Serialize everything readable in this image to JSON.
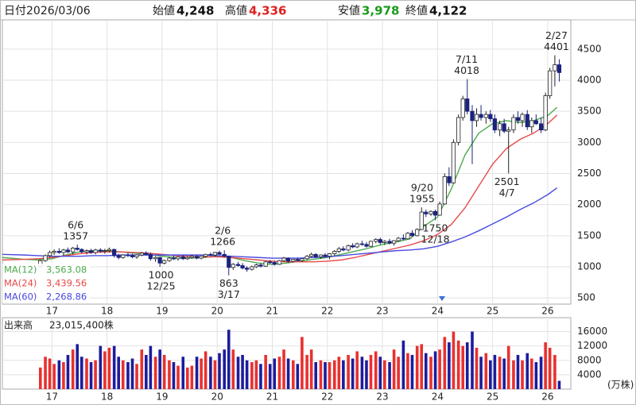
{
  "header": {
    "date_label": "日付",
    "date": "2026/03/06",
    "fields": [
      {
        "label": "始値",
        "value": "4,248",
        "color": "#111111"
      },
      {
        "label": "高値",
        "value": "4,336",
        "color": "#e02020"
      },
      {
        "label": "安値",
        "value": "3,978",
        "color": "#1a9a1a"
      },
      {
        "label": "終値",
        "value": "4,122",
        "color": "#111111"
      }
    ]
  },
  "chart_data": {
    "type": "candlestick",
    "xlim": [
      16.1,
      26.42
    ],
    "xticks": [
      17,
      18,
      19,
      20,
      21,
      22,
      23,
      24,
      25,
      26
    ],
    "ylim": [
      400,
      4970
    ],
    "yticks": [
      500,
      1000,
      1500,
      2000,
      2500,
      3000,
      3500,
      4000,
      4500
    ],
    "grid": true,
    "up_color": "#ffffff",
    "up_border": "#222222",
    "down_color": "#1a237e",
    "x": [
      16.79,
      16.88,
      16.96,
      17.04,
      17.13,
      17.21,
      17.29,
      17.38,
      17.46,
      17.54,
      17.63,
      17.71,
      17.79,
      17.88,
      17.96,
      18.04,
      18.13,
      18.21,
      18.29,
      18.38,
      18.46,
      18.54,
      18.63,
      18.71,
      18.79,
      18.88,
      18.96,
      19.04,
      19.13,
      19.21,
      19.29,
      19.38,
      19.46,
      19.54,
      19.63,
      19.71,
      19.79,
      19.88,
      19.96,
      20.04,
      20.13,
      20.21,
      20.29,
      20.38,
      20.46,
      20.54,
      20.63,
      20.71,
      20.79,
      20.88,
      20.96,
      21.04,
      21.13,
      21.21,
      21.29,
      21.38,
      21.46,
      21.54,
      21.63,
      21.71,
      21.79,
      21.88,
      21.96,
      22.04,
      22.13,
      22.21,
      22.29,
      22.38,
      22.46,
      22.54,
      22.63,
      22.71,
      22.79,
      22.88,
      22.96,
      23.04,
      23.13,
      23.21,
      23.29,
      23.38,
      23.46,
      23.54,
      23.63,
      23.71,
      23.79,
      23.88,
      23.96,
      24.04,
      24.13,
      24.21,
      24.29,
      24.38,
      24.46,
      24.54,
      24.63,
      24.71,
      24.79,
      24.88,
      24.96,
      25.04,
      25.13,
      25.21,
      25.29,
      25.38,
      25.46,
      25.54,
      25.63,
      25.71,
      25.79,
      25.88,
      25.96,
      26.04,
      26.13,
      26.21
    ],
    "open": [
      1000,
      1100,
      1180,
      1230,
      1250,
      1230,
      1270,
      1240,
      1300,
      1280,
      1240,
      1260,
      1230,
      1270,
      1250,
      1260,
      1280,
      1180,
      1150,
      1190,
      1180,
      1160,
      1190,
      1220,
      1200,
      1130,
      1150,
      1060,
      1100,
      1140,
      1130,
      1160,
      1130,
      1150,
      1170,
      1140,
      1170,
      1200,
      1190,
      1230,
      1200,
      1170,
      990,
      1040,
      1020,
      980,
      960,
      1000,
      1030,
      1010,
      1080,
      1070,
      1040,
      1100,
      1140,
      1090,
      1120,
      1100,
      1130,
      1170,
      1200,
      1160,
      1190,
      1170,
      1210,
      1250,
      1290,
      1270,
      1340,
      1320,
      1370,
      1360,
      1330,
      1410,
      1440,
      1390,
      1410,
      1380,
      1420,
      1460,
      1450,
      1540,
      1500,
      1600,
      1880,
      1850,
      1890,
      1830,
      2010,
      2450,
      2350,
      3000,
      3400,
      3700,
      3500,
      3350,
      3450,
      3400,
      3450,
      3380,
      3200,
      3300,
      3180,
      3200,
      3400,
      3350,
      3450,
      3250,
      3350,
      3300,
      3200,
      3750,
      4150,
      4248
    ],
    "high": [
      1120,
      1200,
      1260,
      1280,
      1300,
      1290,
      1310,
      1320,
      1357,
      1300,
      1280,
      1290,
      1290,
      1300,
      1290,
      1310,
      1290,
      1210,
      1200,
      1230,
      1210,
      1200,
      1240,
      1250,
      1230,
      1170,
      1160,
      1120,
      1160,
      1180,
      1170,
      1190,
      1170,
      1190,
      1190,
      1180,
      1210,
      1230,
      1240,
      1260,
      1266,
      1180,
      1060,
      1080,
      1060,
      1010,
      1020,
      1050,
      1060,
      1090,
      1110,
      1100,
      1110,
      1160,
      1150,
      1130,
      1150,
      1140,
      1190,
      1230,
      1220,
      1200,
      1220,
      1220,
      1270,
      1320,
      1330,
      1360,
      1380,
      1390,
      1420,
      1400,
      1420,
      1460,
      1470,
      1430,
      1450,
      1430,
      1480,
      1520,
      1560,
      1590,
      1620,
      1955,
      1920,
      1910,
      1920,
      2050,
      2500,
      2600,
      3050,
      3450,
      3750,
      4018,
      3600,
      3550,
      3600,
      3500,
      3520,
      3450,
      3350,
      3380,
      3250,
      3450,
      3500,
      3480,
      3520,
      3400,
      3450,
      3400,
      3800,
      4200,
      4401,
      4336
    ],
    "low": [
      980,
      1080,
      1150,
      1190,
      1210,
      1180,
      1220,
      1200,
      1260,
      1220,
      1200,
      1210,
      1200,
      1230,
      1210,
      1230,
      1150,
      1120,
      1130,
      1160,
      1140,
      1130,
      1170,
      1180,
      1100,
      1080,
      1000,
      1040,
      1080,
      1110,
      1100,
      1110,
      1110,
      1130,
      1120,
      1120,
      1150,
      1170,
      1170,
      1190,
      1150,
      863,
      950,
      1000,
      960,
      920,
      940,
      980,
      990,
      1000,
      1050,
      1020,
      1030,
      1080,
      1060,
      1070,
      1090,
      1080,
      1110,
      1150,
      1140,
      1130,
      1150,
      1120,
      1180,
      1220,
      1250,
      1250,
      1300,
      1300,
      1340,
      1310,
      1320,
      1380,
      1360,
      1350,
      1360,
      1340,
      1400,
      1430,
      1440,
      1480,
      1490,
      1590,
      1800,
      1820,
      1750,
      1820,
      2000,
      2300,
      2340,
      2950,
      3350,
      3450,
      2650,
      3250,
      3350,
      3300,
      3330,
      3150,
      3100,
      3150,
      2501,
      3150,
      3300,
      3250,
      3200,
      3150,
      3280,
      3150,
      3180,
      3700,
      3900,
      3978
    ],
    "close": [
      1100,
      1180,
      1230,
      1250,
      1230,
      1270,
      1240,
      1300,
      1280,
      1240,
      1260,
      1230,
      1270,
      1250,
      1260,
      1280,
      1180,
      1150,
      1190,
      1180,
      1160,
      1190,
      1220,
      1200,
      1130,
      1150,
      1060,
      1100,
      1140,
      1130,
      1160,
      1130,
      1150,
      1170,
      1140,
      1170,
      1200,
      1190,
      1230,
      1200,
      1170,
      990,
      1040,
      1020,
      980,
      960,
      1000,
      1030,
      1010,
      1080,
      1070,
      1040,
      1100,
      1140,
      1090,
      1120,
      1100,
      1130,
      1170,
      1200,
      1160,
      1190,
      1170,
      1210,
      1250,
      1290,
      1270,
      1340,
      1320,
      1370,
      1360,
      1330,
      1410,
      1440,
      1390,
      1410,
      1380,
      1420,
      1460,
      1450,
      1540,
      1500,
      1600,
      1880,
      1850,
      1890,
      1830,
      2010,
      2450,
      2350,
      3000,
      3400,
      3700,
      3500,
      3350,
      3450,
      3400,
      3450,
      3380,
      3200,
      3300,
      3180,
      3200,
      3400,
      3350,
      3450,
      3250,
      3350,
      3300,
      3200,
      3750,
      4150,
      4248,
      4122
    ],
    "volume": [
      6000,
      9000,
      8500,
      7000,
      8000,
      7500,
      9500,
      11000,
      12500,
      9000,
      8500,
      7500,
      8000,
      12000,
      10500,
      11500,
      12000,
      9000,
      8000,
      7500,
      8500,
      7000,
      11000,
      9500,
      12000,
      9000,
      11000,
      9500,
      8000,
      7500,
      6500,
      9000,
      6000,
      6500,
      9000,
      8500,
      10500,
      9000,
      8000,
      10000,
      11000,
      16500,
      11000,
      9000,
      9500,
      8000,
      7500,
      8000,
      7000,
      9500,
      7000,
      8500,
      9000,
      11000,
      8500,
      8000,
      7000,
      14500,
      9500,
      11000,
      7500,
      8000,
      7500,
      7500,
      8000,
      9000,
      8000,
      9500,
      8500,
      10500,
      9000,
      8000,
      9500,
      10500,
      9000,
      8000,
      7500,
      11000,
      9000,
      13500,
      10000,
      9500,
      12000,
      12500,
      10000,
      9000,
      10500,
      11000,
      14500,
      13000,
      16000,
      13500,
      12000,
      13000,
      16000,
      11500,
      9000,
      10000,
      8000,
      9500,
      9000,
      8500,
      12000,
      8000,
      9500,
      8000,
      10000,
      8500,
      7500,
      9000,
      13000,
      11500,
      9500,
      2301.54
    ],
    "volume_title": "出来高",
    "volume_latest": "23,015,400株",
    "volume_unit": "(万株)",
    "volume_ylim": [
      0,
      19200
    ],
    "volume_yticks": [
      4000,
      8000,
      12000,
      16000
    ],
    "volume_up_color": "#e8312f",
    "volume_down_color": "#1c1c9c",
    "ma_x": [
      16.1,
      16.5,
      16.75,
      17.0,
      17.25,
      17.5,
      17.75,
      18.0,
      18.25,
      18.5,
      18.75,
      19.0,
      19.25,
      19.5,
      19.75,
      20.0,
      20.25,
      20.5,
      20.75,
      21.0,
      21.25,
      21.5,
      21.75,
      22.0,
      22.25,
      22.5,
      22.75,
      23.0,
      23.25,
      23.5,
      23.75,
      24.0,
      24.25,
      24.5,
      24.75,
      25.0,
      25.25,
      25.5,
      25.75,
      26.0,
      26.17
    ],
    "moving_averages": [
      {
        "name": "MA(12)",
        "latest_label": "3,563.08",
        "color": "#4caa4c",
        "values": [
          1150,
          1120,
          1110,
          1130,
          1190,
          1240,
          1260,
          1260,
          1240,
          1220,
          1200,
          1170,
          1150,
          1140,
          1150,
          1170,
          1150,
          1100,
          1060,
          1040,
          1060,
          1090,
          1120,
          1150,
          1200,
          1250,
          1300,
          1360,
          1400,
          1450,
          1650,
          1800,
          2250,
          2800,
          3150,
          3300,
          3350,
          3320,
          3350,
          3430,
          3563.08
        ]
      },
      {
        "name": "MA(24)",
        "latest_label": "3,439.56",
        "color": "#e84a4a",
        "values": [
          1110,
          1120,
          1130,
          1150,
          1180,
          1210,
          1230,
          1240,
          1240,
          1230,
          1220,
          1200,
          1180,
          1170,
          1160,
          1160,
          1150,
          1130,
          1110,
          1090,
          1080,
          1080,
          1080,
          1090,
          1110,
          1150,
          1200,
          1250,
          1300,
          1350,
          1420,
          1520,
          1680,
          1950,
          2300,
          2650,
          2900,
          3050,
          3150,
          3300,
          3439.56
        ]
      },
      {
        "name": "MA(60)",
        "latest_label": "2,268.86",
        "color": "#4a4ae0",
        "values": [
          1200,
          1190,
          1180,
          1170,
          1170,
          1170,
          1180,
          1180,
          1190,
          1190,
          1190,
          1190,
          1190,
          1190,
          1190,
          1180,
          1170,
          1160,
          1150,
          1140,
          1140,
          1140,
          1150,
          1160,
          1180,
          1200,
          1220,
          1240,
          1260,
          1270,
          1290,
          1330,
          1400,
          1480,
          1580,
          1690,
          1800,
          1920,
          2030,
          2160,
          2268.86
        ]
      }
    ],
    "high_marks": [
      {
        "date": "6/6",
        "value": 1357,
        "x": 17.43
      },
      {
        "date": "2/6",
        "value": 1266,
        "x": 20.1
      },
      {
        "date": "9/20",
        "value": 1955,
        "x": 23.72
      },
      {
        "date": "7/11",
        "value": 4018,
        "x": 24.53
      },
      {
        "date": "2/27",
        "value": 4401,
        "x": 26.16
      }
    ],
    "low_marks": [
      {
        "date": "12/25",
        "value": 1000,
        "x": 18.98
      },
      {
        "date": "3/17",
        "value": 863,
        "x": 20.21
      },
      {
        "date": "12/18",
        "value": 1750,
        "x": 23.96
      },
      {
        "date": "4/7",
        "value": 2501,
        "x": 25.26
      }
    ]
  }
}
